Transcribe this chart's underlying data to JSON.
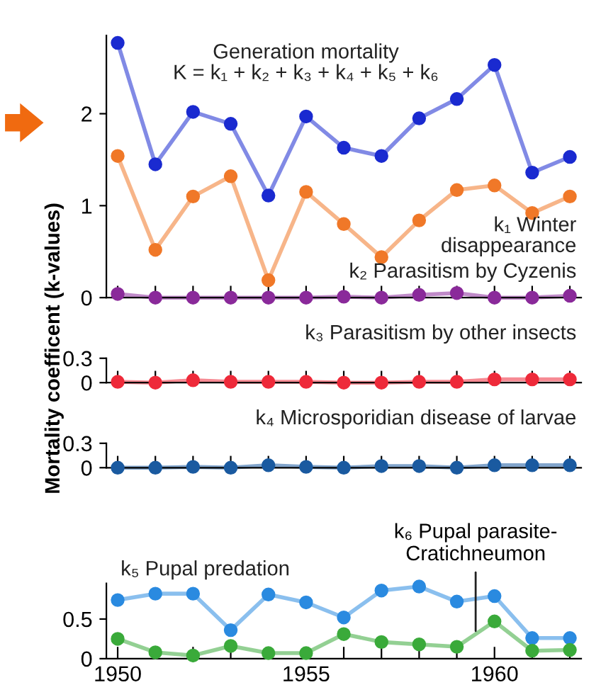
{
  "chart_data": [
    {
      "type": "line",
      "ylabel": "Mortality coefficent (k-values)",
      "x": [
        1950,
        1951,
        1952,
        1953,
        1954,
        1955,
        1956,
        1957,
        1958,
        1959,
        1960,
        1961,
        1962
      ],
      "xlim": [
        1949.7,
        1962.3
      ],
      "xticks": [
        {
          "value": 1950,
          "label": null
        },
        {
          "value": 1951,
          "label": null
        },
        {
          "value": 1952,
          "label": null
        },
        {
          "value": 1953,
          "label": null
        },
        {
          "value": 1954,
          "label": null
        },
        {
          "value": 1955,
          "label": null
        },
        {
          "value": 1956,
          "label": null
        },
        {
          "value": 1957,
          "label": null
        },
        {
          "value": 1958,
          "label": null
        },
        {
          "value": 1959,
          "label": null
        },
        {
          "value": 1960,
          "label": null
        },
        {
          "value": 1961,
          "label": null
        },
        {
          "value": 1962,
          "label": null
        }
      ],
      "ylim": [
        0,
        2.85
      ],
      "yticks": [
        0,
        1,
        2
      ],
      "tick_labels": "y",
      "marker": "circle",
      "grid": false,
      "legend": false,
      "series": [
        {
          "name": "Generation mortality\nK = k₁ + k₂ + k₃ + k₄ + k₅ + k₆",
          "color": "#1a2ad0",
          "values": [
            2.77,
            1.45,
            2.02,
            1.89,
            1.11,
            1.97,
            1.63,
            1.54,
            1.95,
            2.16,
            2.53,
            1.36,
            1.53
          ]
        },
        {
          "name": "k₁ Winter\ndisappearance",
          "color": "#f07828",
          "values": [
            1.54,
            0.52,
            1.1,
            1.32,
            0.19,
            1.15,
            0.8,
            0.44,
            0.84,
            1.17,
            1.22,
            0.92,
            1.1
          ]
        },
        {
          "name": "k₂ Parasitism by Cyzenis",
          "color": "#8a2a9a",
          "values": [
            0.04,
            0,
            0,
            0,
            0,
            0,
            0.01,
            0,
            0.03,
            0.05,
            0,
            0,
            0.02
          ]
        }
      ]
    },
    {
      "type": "line",
      "x": [
        1950,
        1951,
        1952,
        1953,
        1954,
        1955,
        1956,
        1957,
        1958,
        1959,
        1960,
        1961,
        1962
      ],
      "xlim": [
        1949.7,
        1962.3
      ],
      "xticks": [
        {
          "value": 1950,
          "label": null
        },
        {
          "value": 1951,
          "label": null
        },
        {
          "value": 1952,
          "label": null
        },
        {
          "value": 1953,
          "label": null
        },
        {
          "value": 1954,
          "label": null
        },
        {
          "value": 1955,
          "label": null
        },
        {
          "value": 1956,
          "label": null
        },
        {
          "value": 1957,
          "label": null
        },
        {
          "value": 1958,
          "label": null
        },
        {
          "value": 1959,
          "label": null
        },
        {
          "value": 1960,
          "label": null
        },
        {
          "value": 1961,
          "label": null
        },
        {
          "value": 1962,
          "label": null
        }
      ],
      "ylim": [
        0,
        0.3
      ],
      "yticks": [
        0,
        0.3
      ],
      "tick_labels": "y",
      "marker": "circle",
      "grid": false,
      "legend": false,
      "series": [
        {
          "name": "k₃ Parasitism by other insects",
          "color": "#ee2a3a",
          "values": [
            0.01,
            0,
            0.03,
            0.01,
            0.01,
            0.01,
            0,
            0,
            0.01,
            0.01,
            0.04,
            0.04,
            0.04
          ]
        }
      ]
    },
    {
      "type": "line",
      "x": [
        1950,
        1951,
        1952,
        1953,
        1954,
        1955,
        1956,
        1957,
        1958,
        1959,
        1960,
        1961,
        1962
      ],
      "xlim": [
        1949.7,
        1962.3
      ],
      "xticks": [
        {
          "value": 1950,
          "label": null
        },
        {
          "value": 1951,
          "label": null
        },
        {
          "value": 1952,
          "label": null
        },
        {
          "value": 1953,
          "label": null
        },
        {
          "value": 1954,
          "label": null
        },
        {
          "value": 1955,
          "label": null
        },
        {
          "value": 1956,
          "label": null
        },
        {
          "value": 1957,
          "label": null
        },
        {
          "value": 1958,
          "label": null
        },
        {
          "value": 1959,
          "label": null
        },
        {
          "value": 1960,
          "label": null
        },
        {
          "value": 1961,
          "label": null
        },
        {
          "value": 1962,
          "label": null
        }
      ],
      "ylim": [
        0,
        0.3
      ],
      "yticks": [
        0,
        0.3
      ],
      "tick_labels": "y",
      "marker": "circle",
      "grid": false,
      "legend": false,
      "series": [
        {
          "name": "k₄ Microsporidian disease of larvae",
          "color": "#1a5aa0",
          "values": [
            0,
            0,
            0.01,
            0,
            0.03,
            0.01,
            0,
            0.02,
            0.02,
            0,
            0.03,
            0.03,
            0.03
          ]
        }
      ]
    },
    {
      "type": "line",
      "x": [
        1950,
        1951,
        1952,
        1953,
        1954,
        1955,
        1956,
        1957,
        1958,
        1959,
        1960,
        1961,
        1962
      ],
      "xlim": [
        1949.7,
        1962.3
      ],
      "xticks": [
        1950,
        {
          "value": 1951,
          "label": null
        },
        {
          "value": 1952,
          "label": null
        },
        {
          "value": 1953,
          "label": null
        },
        {
          "value": 1954,
          "label": null
        },
        1955,
        {
          "value": 1956,
          "label": null
        },
        {
          "value": 1957,
          "label": null
        },
        {
          "value": 1958,
          "label": null
        },
        {
          "value": 1959,
          "label": null
        },
        1960,
        {
          "value": 1961,
          "label": null
        },
        {
          "value": 1962,
          "label": null
        }
      ],
      "ylim": [
        0,
        0.95
      ],
      "yticks": [
        0,
        0.5
      ],
      "marker": "circle",
      "grid": false,
      "legend": false,
      "annotations": [
        {
          "text": "k₆ Pupal parasite-\nCratichneumon",
          "x": 1959.5,
          "y": 0.3
        }
      ],
      "series": [
        {
          "name": "k₅ Pupal predation",
          "color": "#2a8ae0",
          "values": [
            0.74,
            0.82,
            0.82,
            0.36,
            0.81,
            0.71,
            0.52,
            0.86,
            0.91,
            0.72,
            0.79,
            0.26,
            0.26
          ]
        },
        {
          "color": "#3aaa3a",
          "values": [
            0.25,
            0.08,
            0.04,
            0.16,
            0.07,
            0.07,
            0.31,
            0.21,
            0.18,
            0.15,
            0.47,
            0.1,
            0.11
          ]
        }
      ]
    }
  ]
}
